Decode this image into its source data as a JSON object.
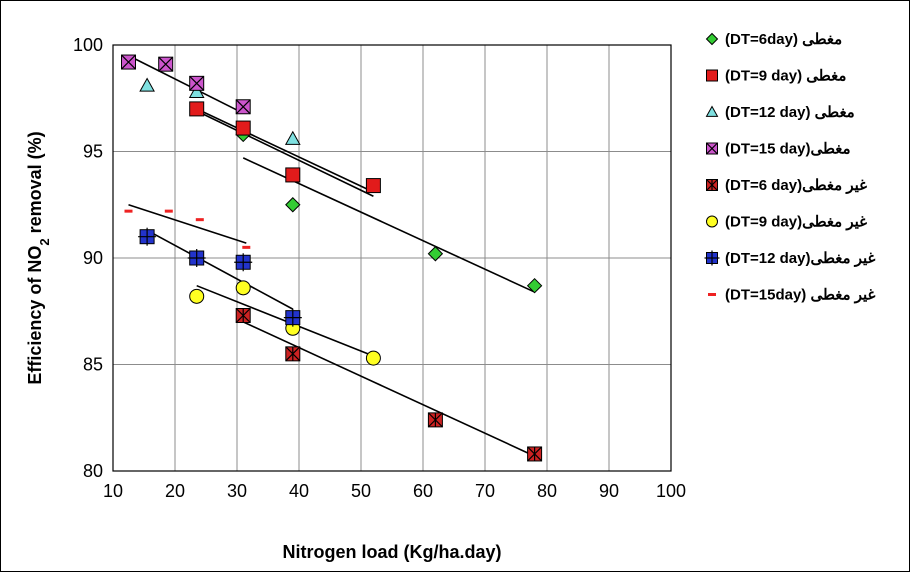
{
  "chart_data": {
    "type": "scatter",
    "title": "",
    "xlabel": "Nitrogen load (Kg/ha.day)",
    "ylabel_parts": {
      "before": "Efficiency of  NO",
      "sub": "2",
      "after": "  removal (%)"
    },
    "xlim": [
      10,
      100
    ],
    "ylim": [
      80,
      100
    ],
    "xticks": [
      10,
      20,
      30,
      40,
      50,
      60,
      70,
      80,
      90,
      100
    ],
    "yticks": [
      80,
      85,
      90,
      95,
      100
    ],
    "grid": "vertical and horizontal major gridlines",
    "legend_position": "right",
    "series": [
      {
        "name": "مغطی (DT=6day)",
        "marker": "diamond",
        "fill": "#33cc33",
        "x": [
          31,
          39,
          62,
          78
        ],
        "y": [
          95.8,
          92.5,
          90.2,
          88.7
        ],
        "trend": [
          [
            31,
            94.7
          ],
          [
            78,
            88.4
          ]
        ]
      },
      {
        "name": "مغطی (DT=9 day)",
        "marker": "square",
        "fill": "#e21b1b",
        "x": [
          23.5,
          31,
          39,
          52
        ],
        "y": [
          97,
          96.1,
          93.9,
          93.4
        ],
        "trend": [
          [
            23.5,
            97.0
          ],
          [
            52,
            93.1
          ]
        ]
      },
      {
        "name": "مغطی (DT=12 day)",
        "marker": "triangle",
        "fill": "#7fe0e0",
        "x": [
          15.5,
          23.5,
          39
        ],
        "y": [
          98.1,
          97.8,
          95.6
        ],
        "trend": [
          [
            23.5,
            96.9
          ],
          [
            52,
            92.9
          ]
        ]
      },
      {
        "name": "مغطی(DT=15 day)",
        "marker": "xsquare",
        "fill": "#cc55cc",
        "x": [
          12.5,
          18.5,
          23.5,
          31
        ],
        "y": [
          99.2,
          99.1,
          98.2,
          97.1
        ],
        "trend": [
          [
            12.5,
            99.5
          ],
          [
            31,
            96.8
          ]
        ]
      },
      {
        "name": "غیر مغطی(DT=6 day)",
        "marker": "starsquare",
        "fill": "#cc2222",
        "x": [
          31,
          39,
          62,
          78
        ],
        "y": [
          87.3,
          85.5,
          82.4,
          80.8
        ],
        "trend": [
          [
            31,
            87.0
          ],
          [
            78,
            80.7
          ]
        ]
      },
      {
        "name": "غیر مغطی(DT=9 day)",
        "marker": "circle",
        "fill": "#ffff22",
        "x": [
          23.5,
          31,
          39,
          52
        ],
        "y": [
          88.2,
          88.6,
          86.7,
          85.3
        ],
        "trend": [
          [
            23.5,
            88.7
          ],
          [
            52,
            85.4
          ]
        ]
      },
      {
        "name": "غیر مغطی(DT=12 day)",
        "marker": "plussquare",
        "fill": "#2233cc",
        "x": [
          15.5,
          23.5,
          31,
          39
        ],
        "y": [
          91,
          90,
          89.8,
          87.2
        ],
        "trend": [
          [
            15.5,
            91.3
          ],
          [
            39,
            87.6
          ]
        ]
      },
      {
        "name": "غیر مغطی (DT=15day)",
        "marker": "dash",
        "fill": "#ee2222",
        "x": [
          12.5,
          19,
          24,
          31.5
        ],
        "y": [
          92.2,
          92.2,
          91.8,
          90.5
        ],
        "trend": [
          [
            12.5,
            92.5
          ],
          [
            31.5,
            90.7
          ]
        ]
      }
    ]
  }
}
